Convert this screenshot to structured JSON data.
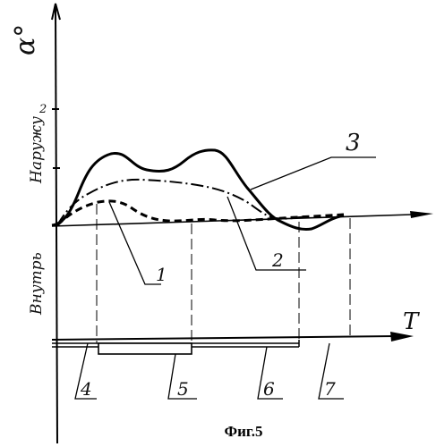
{
  "figure": {
    "caption": "Фиг.5",
    "y_axis_label": "α°",
    "tick_label": "2",
    "time_axis_label": "T",
    "region_upper_label": "Наружу",
    "region_lower_label": "Внутрь"
  },
  "curve_labels": {
    "c1": "1",
    "c2": "2",
    "c3": "3"
  },
  "segment_labels": {
    "s4": "4",
    "s5": "5",
    "s6": "6",
    "s7": "7"
  }
}
